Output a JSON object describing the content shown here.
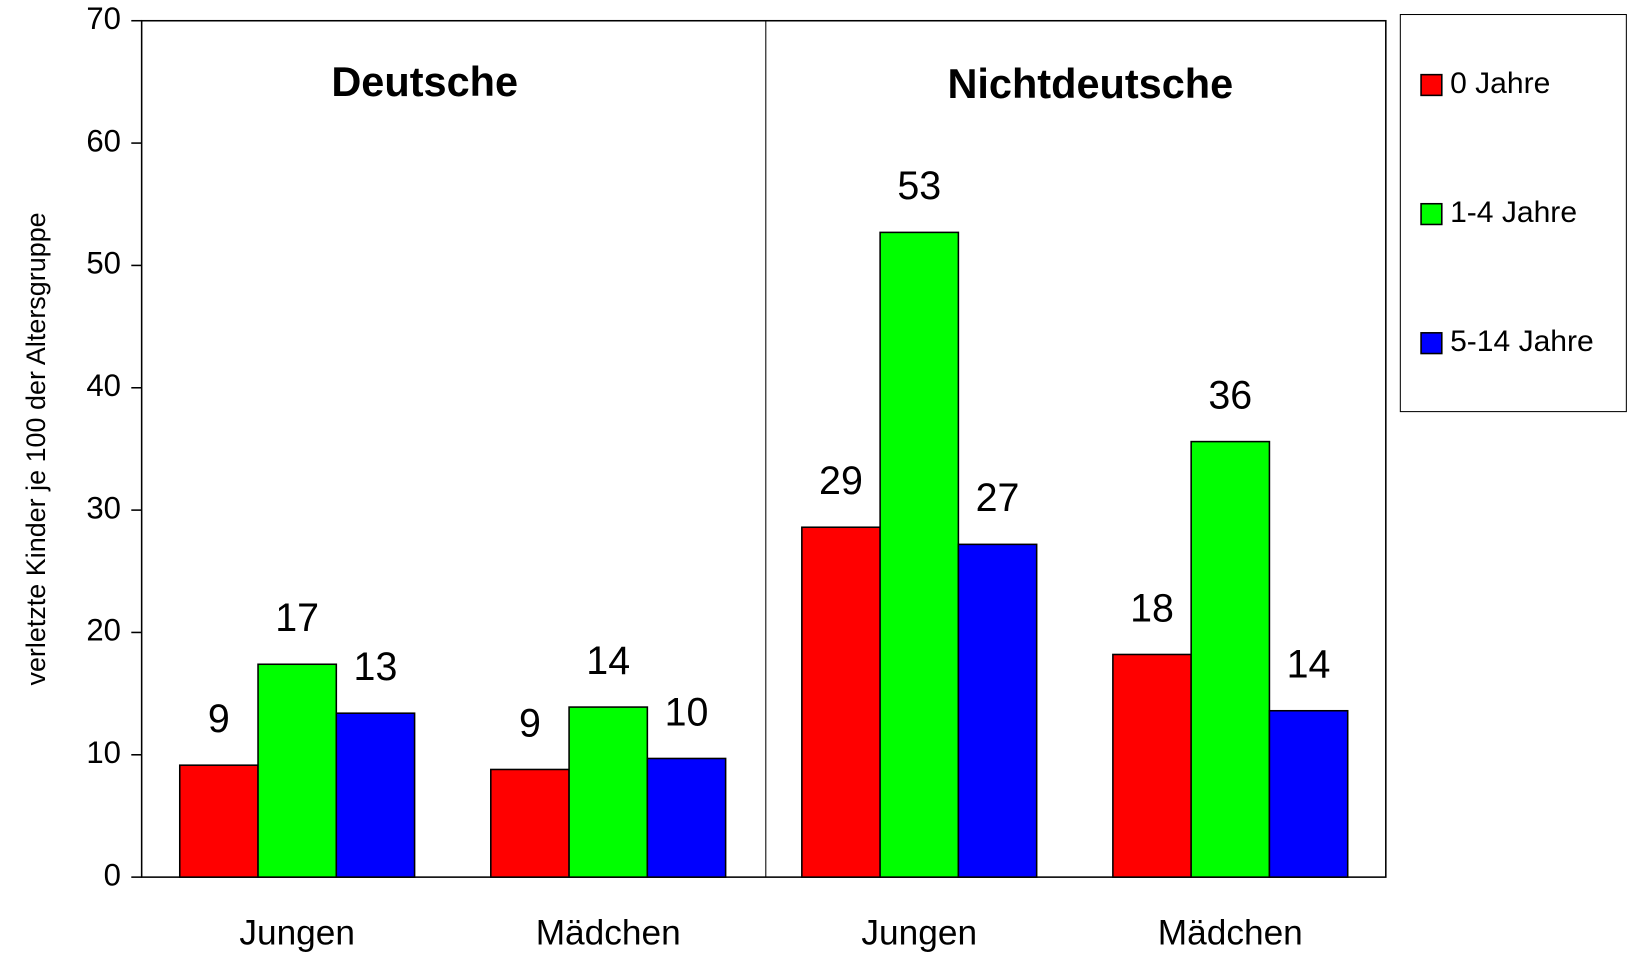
{
  "chart_data": {
    "type": "bar",
    "y_label": "verletzte Kinder je 100 der Altersgruppe",
    "annotations": [
      "Deutsche",
      "Nichtdeutsche"
    ],
    "categories": [
      "Jungen",
      "Mädchen",
      "Jungen",
      "Mädchen"
    ],
    "series": [
      {
        "name": "0 Jahre",
        "color": "#ff0000",
        "values": [
          9.15,
          8.8,
          28.6,
          18.2
        ],
        "value_labels": [
          "9",
          "9",
          "29",
          "18"
        ]
      },
      {
        "name": "1-4 Jahre",
        "color": "#00ff00",
        "values": [
          17.4,
          13.9,
          52.7,
          35.6
        ],
        "value_labels": [
          "17",
          "14",
          "53",
          "36"
        ]
      },
      {
        "name": "5-14 Jahre",
        "color": "#0000ff",
        "values": [
          13.4,
          9.7,
          27.2,
          13.6
        ],
        "value_labels": [
          "13",
          "10",
          "27",
          "14"
        ]
      }
    ],
    "ylim": [
      0,
      70
    ],
    "yticks": [
      0,
      10,
      20,
      30,
      40,
      50,
      60,
      70
    ],
    "legend": "right",
    "grid": false
  }
}
